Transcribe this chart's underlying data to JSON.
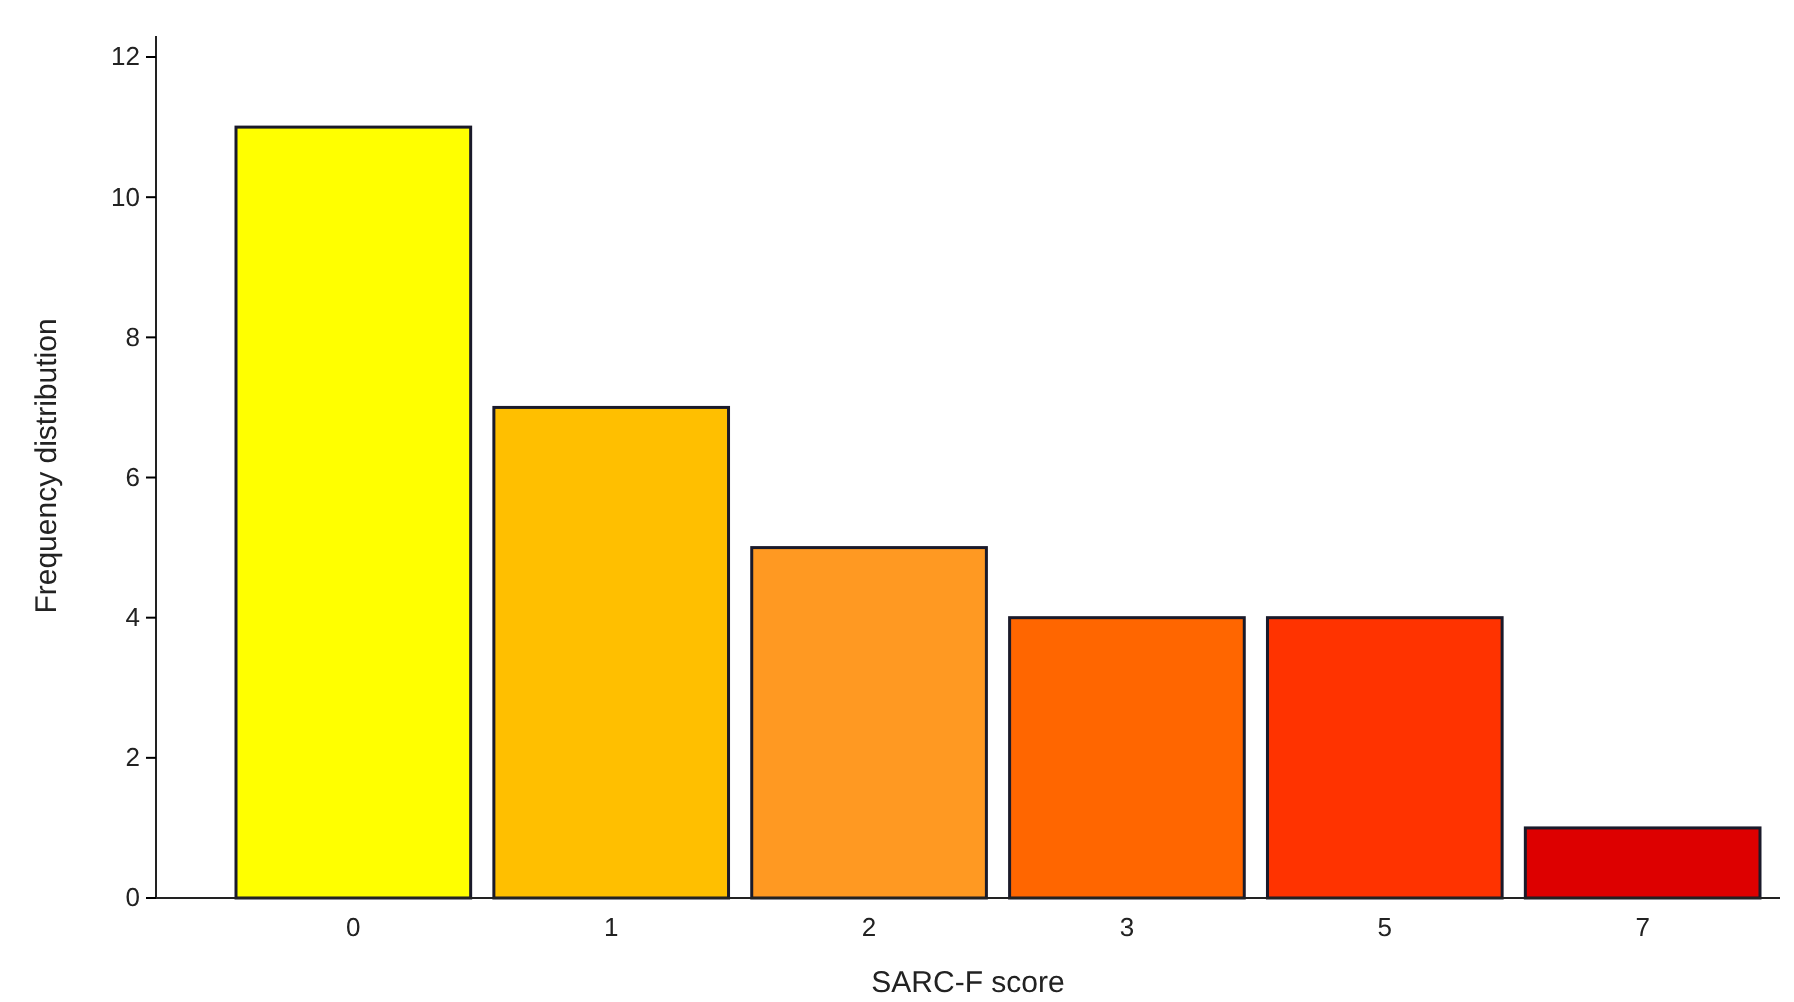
{
  "chart_data": {
    "type": "bar",
    "xlabel": "SARC-F score",
    "ylabel": "Frequency distribution",
    "categories": [
      "0",
      "1",
      "2",
      "3",
      "5",
      "7"
    ],
    "values": [
      11,
      7,
      5,
      4,
      4,
      1
    ],
    "colors": [
      "#ffff00",
      "#ffbf00",
      "#ff9922",
      "#ff6600",
      "#ff3300",
      "#dd0000"
    ],
    "ylim": [
      0,
      12.3
    ],
    "yticks": [
      0,
      2,
      4,
      6,
      8,
      10,
      12
    ],
    "grid": false
  }
}
